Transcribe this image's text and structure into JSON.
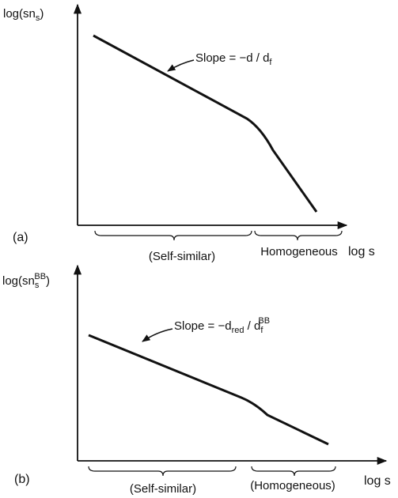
{
  "panel_a": {
    "label": "(a)",
    "y_label": {
      "main": "log(sn",
      "sub": "s",
      "end": ")"
    },
    "x_label": "log s",
    "slope": {
      "text": "Slope = −d / d",
      "sub": "f"
    },
    "regions": [
      "(Self-similar)",
      "Homogeneous"
    ]
  },
  "panel_b": {
    "label": "(b)",
    "y_label": {
      "main": "log(sn",
      "sub": "s",
      "sup": "BB",
      "end": ")"
    },
    "x_label": "log s",
    "slope": {
      "text": "Slope = −d",
      "sub": "red",
      "mid": " / d",
      "sub2": "f",
      "sup": "BB"
    },
    "regions": [
      "(Self-similar)",
      "(Homogeneous)"
    ]
  }
}
